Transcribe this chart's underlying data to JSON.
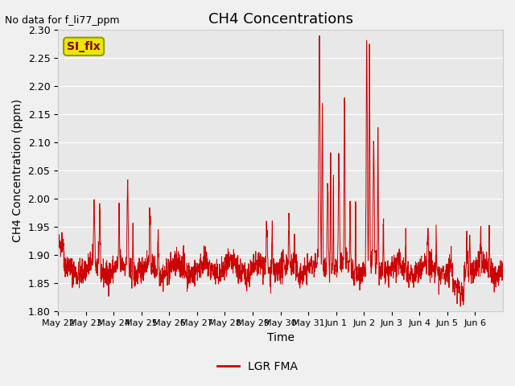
{
  "title": "CH4 Concentrations",
  "xlabel": "Time",
  "ylabel": "CH4 Concentration (ppm)",
  "top_left_text": "No data for f_li77_ppm",
  "legend_label": "LGR FMA",
  "legend_color": "#cc0000",
  "line_color": "#cc0000",
  "background_color": "#e8e8e8",
  "fig_background": "#f0f0f0",
  "ylim": [
    1.8,
    2.3
  ],
  "yticks": [
    1.8,
    1.85,
    1.9,
    1.95,
    2.0,
    2.05,
    2.1,
    2.15,
    2.2,
    2.25,
    2.3
  ],
  "x_tick_labels": [
    "May 22",
    "May 23",
    "May 24",
    "May 25",
    "May 26",
    "May 27",
    "May 28",
    "May 29",
    "May 30",
    "May 31",
    "Jun 1",
    "Jun 2",
    "Jun 3",
    "Jun 4",
    "Jun 5",
    "Jun 6"
  ],
  "si_flx_label": "SI_flx",
  "si_flx_bg": "#e8e800",
  "si_flx_text_color": "#8b0000"
}
